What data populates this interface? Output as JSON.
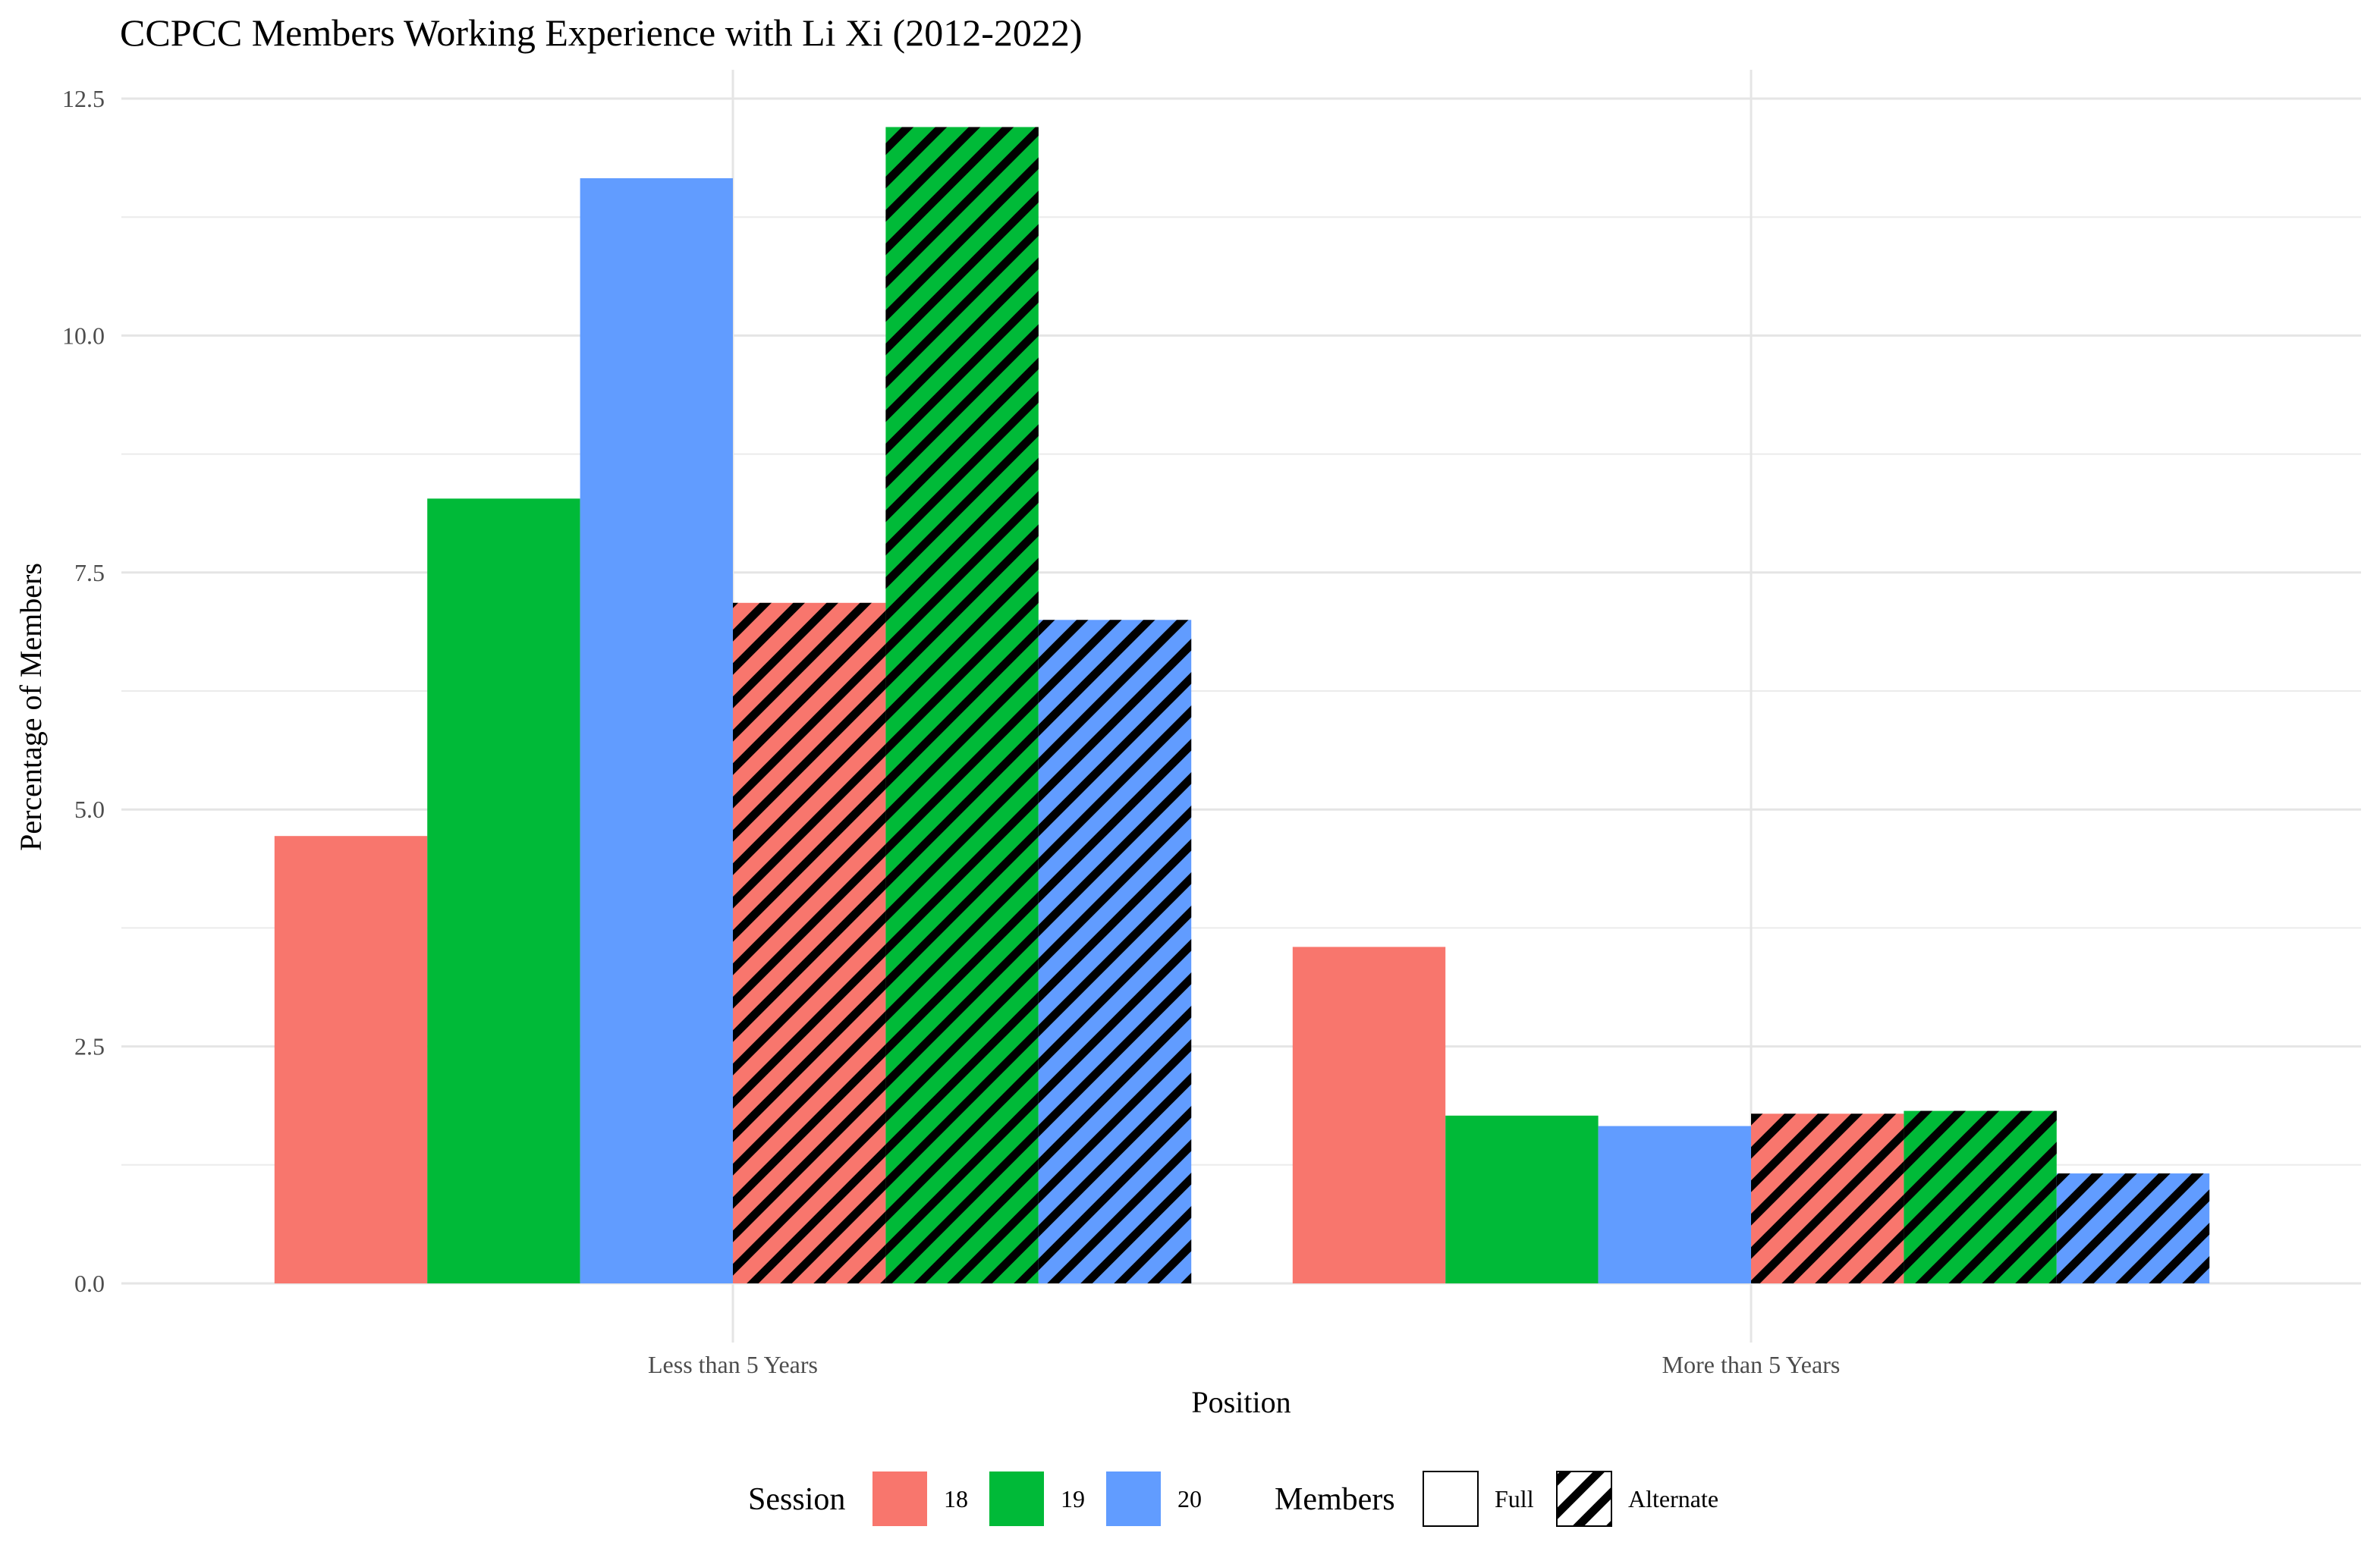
{
  "chart_data": {
    "type": "bar",
    "title": "CCPCC Members Working Experience with Li Xi (2012-2022)",
    "xlabel": "Position",
    "ylabel": "Percentage of Members",
    "categories": [
      "Less than 5 Years",
      "More than 5 Years"
    ],
    "ylim": [
      0,
      12.5
    ],
    "y_ticks": [
      "0.0",
      "2.5",
      "5.0",
      "7.5",
      "10.0",
      "12.5"
    ],
    "grid": true,
    "legend_position": "bottom",
    "series": [
      {
        "session": "18",
        "members": "Full",
        "color": "#F8766D",
        "pattern": "none",
        "values": [
          4.72,
          3.55
        ]
      },
      {
        "session": "19",
        "members": "Full",
        "color": "#00BA38",
        "pattern": "none",
        "values": [
          8.28,
          1.77
        ]
      },
      {
        "session": "20",
        "members": "Full",
        "color": "#619CFF",
        "pattern": "none",
        "values": [
          11.66,
          1.66
        ]
      },
      {
        "session": "18",
        "members": "Alternate",
        "color": "#F8766D",
        "pattern": "stripe",
        "values": [
          7.18,
          1.79
        ]
      },
      {
        "session": "19",
        "members": "Alternate",
        "color": "#00BA38",
        "pattern": "stripe",
        "values": [
          12.2,
          1.82
        ]
      },
      {
        "session": "20",
        "members": "Alternate",
        "color": "#619CFF",
        "pattern": "stripe",
        "values": [
          7.0,
          1.16
        ]
      }
    ]
  },
  "legend": {
    "session_title": "Session",
    "session_items": [
      {
        "label": "18",
        "color": "#F8766D"
      },
      {
        "label": "19",
        "color": "#00BA38"
      },
      {
        "label": "20",
        "color": "#619CFF"
      }
    ],
    "members_title": "Members",
    "members_items": [
      {
        "label": "Full",
        "pattern": "none"
      },
      {
        "label": "Alternate",
        "pattern": "stripe"
      }
    ]
  }
}
